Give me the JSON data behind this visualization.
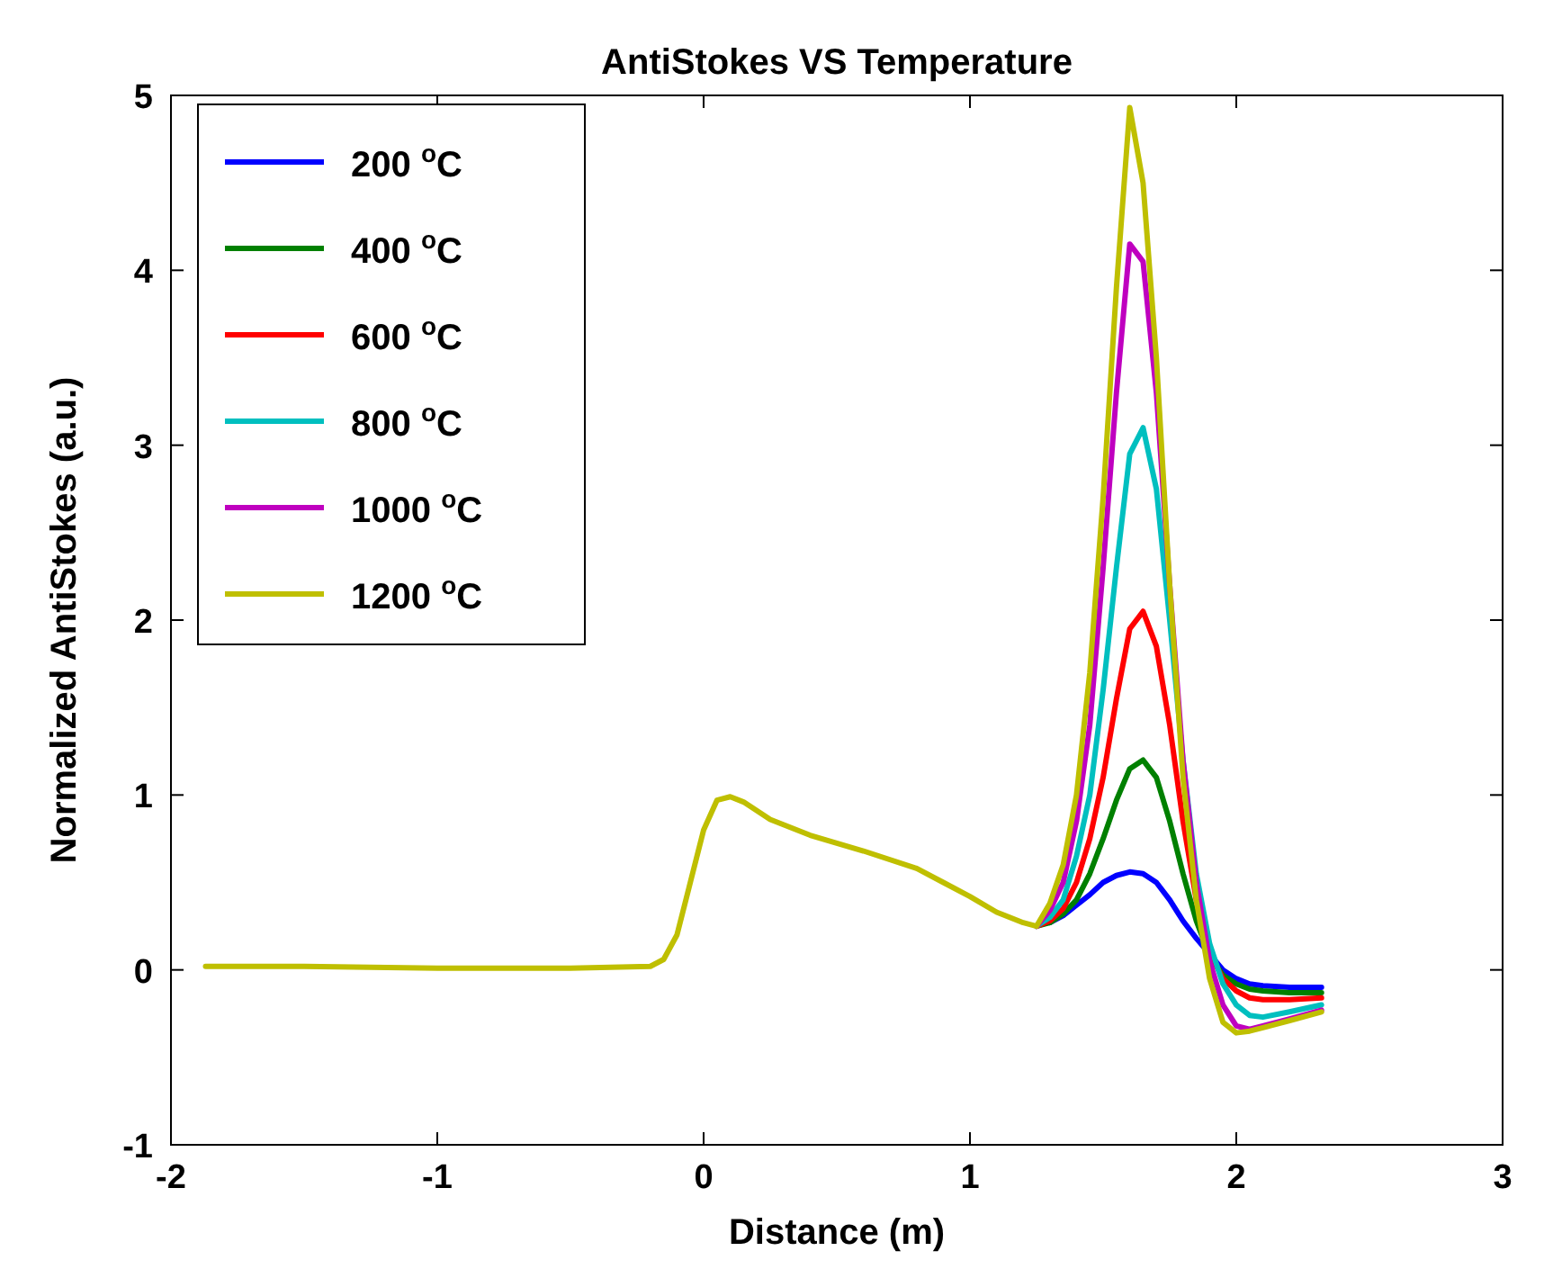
{
  "chart_data": {
    "type": "line",
    "title": "AntiStokes VS Temperature",
    "xlabel": "Distance (m)",
    "ylabel": "Normalized AntiStokes (a.u.)",
    "x": [
      -1.87,
      -1.5,
      -1.0,
      -0.5,
      -0.2,
      -0.15,
      -0.1,
      -0.05,
      0,
      0.05,
      0.1,
      0.15,
      0.25,
      0.4,
      0.6,
      0.8,
      0.9,
      1.0,
      1.1,
      1.2,
      1.25,
      1.3,
      1.35,
      1.4,
      1.45,
      1.5,
      1.55,
      1.6,
      1.65,
      1.7,
      1.75,
      1.8,
      1.85,
      1.9,
      1.95,
      2.0,
      2.05,
      2.1,
      2.2,
      2.32
    ],
    "series": [
      {
        "name": "200 $^{o}$C",
        "color": "#0000ff",
        "values": [
          null,
          null,
          null,
          null,
          null,
          null,
          null,
          null,
          null,
          null,
          null,
          null,
          null,
          null,
          null,
          null,
          null,
          null,
          null,
          null,
          null,
          0.27,
          0.31,
          0.37,
          0.43,
          0.5,
          0.54,
          0.56,
          0.55,
          0.5,
          0.4,
          0.28,
          0.18,
          0.09,
          0.0,
          -0.05,
          -0.08,
          -0.09,
          -0.1,
          -0.1
        ]
      },
      {
        "name": "400 $^{o}$C",
        "color": "#008000",
        "values": [
          null,
          null,
          null,
          null,
          null,
          null,
          null,
          null,
          null,
          null,
          null,
          null,
          null,
          null,
          null,
          null,
          null,
          null,
          null,
          null,
          0.25,
          0.27,
          0.32,
          0.4,
          0.55,
          0.75,
          0.97,
          1.15,
          1.2,
          1.1,
          0.85,
          0.55,
          0.28,
          0.08,
          -0.03,
          -0.08,
          -0.11,
          -0.12,
          -0.13,
          -0.13
        ]
      },
      {
        "name": "600 $^{o}$C",
        "color": "#ff0000",
        "values": [
          null,
          null,
          null,
          null,
          null,
          null,
          null,
          null,
          null,
          null,
          null,
          null,
          null,
          null,
          null,
          null,
          null,
          null,
          null,
          null,
          0.25,
          0.28,
          0.35,
          0.5,
          0.75,
          1.1,
          1.55,
          1.95,
          2.05,
          1.85,
          1.4,
          0.85,
          0.4,
          0.1,
          -0.05,
          -0.12,
          -0.16,
          -0.17,
          -0.17,
          -0.16
        ]
      },
      {
        "name": "800 $^{o}$C",
        "color": "#00bfbf",
        "values": [
          null,
          null,
          null,
          null,
          null,
          null,
          null,
          null,
          null,
          null,
          null,
          null,
          null,
          null,
          null,
          null,
          null,
          null,
          null,
          null,
          0.25,
          0.3,
          0.4,
          0.65,
          1.0,
          1.6,
          2.3,
          2.95,
          3.1,
          2.75,
          2.0,
          1.2,
          0.55,
          0.15,
          -0.08,
          -0.2,
          -0.26,
          -0.27,
          -0.24,
          -0.2
        ]
      },
      {
        "name": "1000 $^{o}$C",
        "color": "#bf00bf",
        "values": [
          null,
          null,
          null,
          null,
          null,
          null,
          null,
          null,
          null,
          null,
          null,
          null,
          null,
          null,
          null,
          null,
          null,
          null,
          null,
          null,
          0.25,
          0.34,
          0.5,
          0.85,
          1.4,
          2.3,
          3.3,
          4.15,
          4.05,
          3.3,
          2.2,
          1.2,
          0.5,
          0.05,
          -0.2,
          -0.32,
          -0.34,
          -0.32,
          -0.28,
          -0.23
        ]
      },
      {
        "name": "1200 $^{o}$C",
        "color": "#bfbf00",
        "values": [
          0.02,
          0.02,
          0.01,
          0.01,
          0.02,
          0.06,
          0.2,
          0.5,
          0.8,
          0.97,
          0.99,
          0.96,
          0.86,
          0.77,
          0.68,
          0.58,
          0.5,
          0.42,
          0.33,
          0.27,
          0.25,
          0.38,
          0.6,
          1.0,
          1.7,
          2.7,
          3.9,
          4.93,
          4.5,
          3.5,
          2.2,
          1.1,
          0.4,
          -0.05,
          -0.3,
          -0.36,
          -0.35,
          -0.33,
          -0.29,
          -0.24
        ]
      }
    ],
    "xlim": [
      -2,
      3
    ],
    "xticks": [
      -2,
      -1,
      0,
      1,
      2,
      3
    ],
    "ylim": [
      -1,
      5
    ],
    "yticks": [
      -1,
      0,
      1,
      2,
      3,
      4,
      5
    ],
    "legend": "top left",
    "grid": false,
    "line_style": "solid",
    "marker": "none"
  }
}
